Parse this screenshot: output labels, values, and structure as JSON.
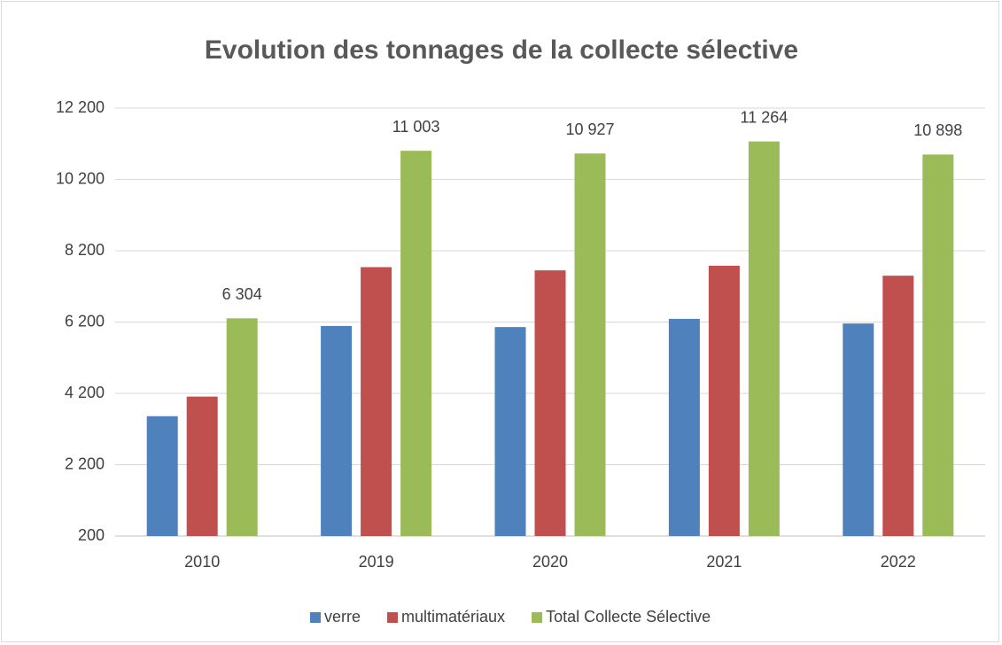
{
  "chart_data": {
    "type": "bar",
    "title": "Evolution des tonnages de la collecte sélective",
    "categories": [
      "2010",
      "2019",
      "2020",
      "2021",
      "2022"
    ],
    "series": [
      {
        "name": "verre",
        "color": "#4f81bd",
        "values": [
          3560,
          6090,
          6060,
          6290,
          6160
        ]
      },
      {
        "name": "multimatériaux",
        "color": "#c0504d",
        "values": [
          4110,
          7740,
          7650,
          7780,
          7500
        ]
      },
      {
        "name": "Total Collecte Sélective",
        "color": "#9bbb59",
        "values": [
          6304,
          11003,
          10927,
          11264,
          10898
        ],
        "value_labels": [
          "6 304",
          "11 003",
          "10 927",
          "11 264",
          "10 898"
        ]
      }
    ],
    "ylim": [
      200,
      12200
    ],
    "yticks": [
      200,
      {
        "value": 2200,
        "label": "2 200"
      },
      {
        "value": 4200,
        "label": "4 200"
      },
      {
        "value": 6200,
        "label": "6 200"
      },
      {
        "value": 8200,
        "label": "8 200"
      },
      {
        "value": 10200,
        "label": "10 200"
      },
      {
        "value": 12200,
        "label": "12 200"
      }
    ],
    "grid": true,
    "legend": "bottom"
  }
}
